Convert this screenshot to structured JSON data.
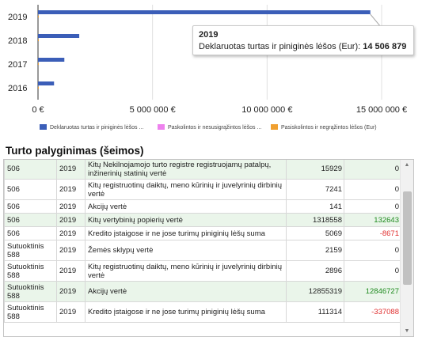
{
  "chart_data": {
    "type": "bar",
    "orientation": "horizontal",
    "categories": [
      "2019",
      "2018",
      "2017",
      "2016"
    ],
    "series": [
      {
        "name": "Deklaruotas turtas ir piniginės lėšos ...",
        "color": "#3b5eb8",
        "values": [
          14506879,
          1800000,
          1150000,
          700000
        ]
      },
      {
        "name": "Paskolintos ir nesusigrąžintos lėšos ...",
        "color": "#ee82ee",
        "values": [
          0,
          0,
          0,
          0
        ]
      },
      {
        "name": "Pasiskolintos ir negrąžintos lėšos (Eur)",
        "color": "#f0a030",
        "values": [
          0,
          0,
          0,
          0
        ]
      }
    ],
    "xticks": [
      "0 €",
      "5 000 000 €",
      "10 000 000 €",
      "15 000 000 €"
    ],
    "xtick_values": [
      0,
      5000000,
      10000000,
      15000000
    ],
    "xlim": [
      0,
      15000000
    ],
    "grid": true,
    "legend_position": "bottom"
  },
  "tooltip": {
    "year": "2019",
    "label": "Deklaruotas turtas ir piniginės lėšos (Eur):",
    "value": "14 506 879"
  },
  "section_title": "Turto palyginimas (šeimos)",
  "table": {
    "rows": [
      {
        "who": "506",
        "year": "2019",
        "desc": "Kitų Nekilnojamojo turto registre registruojamų patalpų, inžinerinių statinių vertė",
        "value": "15929",
        "diff": "0",
        "diff_sign": "zero",
        "hl": true,
        "h": 26
      },
      {
        "who": "506",
        "year": "2019",
        "desc": "Kitų registruotinų daiktų, meno kūrinių ir juvelyrinių dirbinių vertė",
        "value": "7241",
        "diff": "0",
        "diff_sign": "zero",
        "hl": false,
        "h": 26
      },
      {
        "who": "506",
        "year": "2019",
        "desc": "Akcijų vertė",
        "value": "141",
        "diff": "0",
        "diff_sign": "zero",
        "hl": false,
        "h": 17
      },
      {
        "who": "506",
        "year": "2019",
        "desc": "Kitų vertybinių popierių vertė",
        "value": "1318558",
        "diff": "132643",
        "diff_sign": "pos",
        "hl": true,
        "h": 17
      },
      {
        "who": "506",
        "year": "2019",
        "desc": "Kredito įstaigose ir ne jose turimų piniginių lėšų suma",
        "value": "5069",
        "diff": "-8671",
        "diff_sign": "neg",
        "hl": false,
        "h": 17
      },
      {
        "who": "Sutuoktinis 588",
        "year": "2019",
        "desc": "Žemės sklypų vertė",
        "value": "2159",
        "diff": "0",
        "diff_sign": "zero",
        "hl": false,
        "h": 26
      },
      {
        "who": "Sutuoktinis 588",
        "year": "2019",
        "desc": "Kitų registruotinų daiktų, meno kūrinių ir juvelyrinių dirbinių vertė",
        "value": "2896",
        "diff": "0",
        "diff_sign": "zero",
        "hl": false,
        "h": 26
      },
      {
        "who": "Sutuoktinis 588",
        "year": "2019",
        "desc": "Akcijų vertė",
        "value": "12855319",
        "diff": "12846727",
        "diff_sign": "pos",
        "hl": true,
        "h": 26
      },
      {
        "who": "Sutuoktinis 588",
        "year": "2019",
        "desc": "Kredito įstaigose ir ne jose turimų piniginių lėšų suma",
        "value": "111314",
        "diff": "-337088",
        "diff_sign": "neg",
        "hl": false,
        "h": 26
      }
    ]
  },
  "scrollbar": {
    "up_icon": "▲",
    "down_icon": "▼"
  }
}
